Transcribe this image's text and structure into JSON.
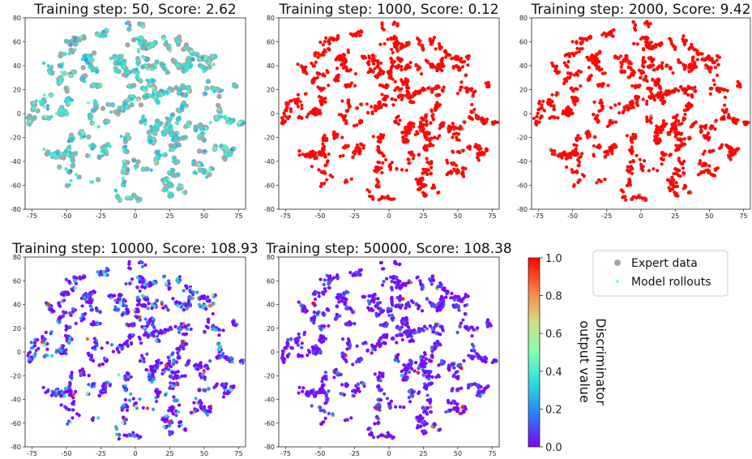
{
  "chart_data": [
    {
      "type": "scatter",
      "title": "Training step: 50, Score: 2.62",
      "xlim": [
        -80,
        80
      ],
      "ylim": [
        -80,
        80
      ],
      "xticks": [
        -75,
        -50,
        -25,
        0,
        25,
        50,
        75
      ],
      "yticks": [
        -80,
        -60,
        -40,
        -20,
        0,
        20,
        40,
        60,
        80
      ],
      "discriminator_output_mean": 0.35,
      "discriminator_output_spread": 0.06,
      "model_point_opacity": 0.9
    },
    {
      "type": "scatter",
      "title": "Training step: 1000, Score: 0.12",
      "xlim": [
        -80,
        80
      ],
      "ylim": [
        -80,
        80
      ],
      "xticks": [
        -75,
        -50,
        -25,
        0,
        25,
        50,
        75
      ],
      "yticks": [
        -80,
        -60,
        -40,
        -20,
        0,
        20,
        40,
        60,
        80
      ],
      "discriminator_output_mean": 0.99,
      "discriminator_output_spread": 0.01,
      "model_point_opacity": 1.0
    },
    {
      "type": "scatter",
      "title": "Training step: 2000, Score: 9.42",
      "xlim": [
        -80,
        80
      ],
      "ylim": [
        -80,
        80
      ],
      "xticks": [
        -75,
        -50,
        -25,
        0,
        25,
        50,
        75
      ],
      "yticks": [
        -80,
        -60,
        -40,
        -20,
        0,
        20,
        40,
        60,
        80
      ],
      "discriminator_output_mean": 0.99,
      "discriminator_output_spread": 0.01,
      "model_point_opacity": 1.0
    },
    {
      "type": "scatter",
      "title": "Training step: 10000, Score: 108.93",
      "xlim": [
        -80,
        80
      ],
      "ylim": [
        -80,
        80
      ],
      "xticks": [
        -75,
        -50,
        -25,
        0,
        25,
        50,
        75
      ],
      "yticks": [
        -80,
        -60,
        -40,
        -20,
        0,
        20,
        40,
        60,
        80
      ],
      "discriminator_output_mean": 0.03,
      "discriminator_output_spread": 0.18,
      "model_point_opacity": 1.0
    },
    {
      "type": "scatter",
      "title": "Training step: 50000, Score: 108.38",
      "xlim": [
        -80,
        80
      ],
      "ylim": [
        -80,
        80
      ],
      "xticks": [
        -75,
        -50,
        -25,
        0,
        25,
        50,
        75
      ],
      "yticks": [
        -80,
        -60,
        -40,
        -20,
        0,
        20,
        40,
        60,
        80
      ],
      "discriminator_output_mean": 0.02,
      "discriminator_output_spread": 0.08,
      "model_point_opacity": 1.0
    }
  ],
  "colorbar": {
    "label_line1": "Discriminator",
    "label_line2": "output value",
    "ticks": [
      "0.0",
      "0.2",
      "0.4",
      "0.6",
      "0.8",
      "1.0"
    ],
    "range": [
      0,
      1
    ],
    "colormap": "rainbow",
    "colormap_stops": [
      "#8000ff",
      "#2c7bf6",
      "#2adcdc",
      "#80ffb4",
      "#d4dc7f",
      "#ff7b41",
      "#ff0000"
    ]
  },
  "legend": {
    "items": [
      {
        "label": "Expert data",
        "color": "#a6a6a6"
      },
      {
        "label": "Model rollouts",
        "color": "#7fffd4"
      }
    ]
  },
  "colors": {
    "expert": "#a6a6a6",
    "axis": "#222222"
  }
}
